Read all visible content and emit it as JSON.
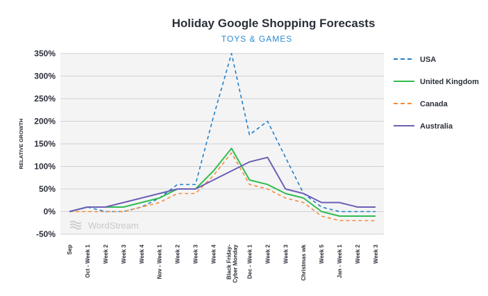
{
  "chart_data": {
    "type": "line",
    "title": "Holiday Google Shopping Forecasts",
    "subtitle": "TOYS & GAMES",
    "xlabel": "",
    "ylabel": "RELATIVE GROWTH",
    "ylim": [
      -50,
      350
    ],
    "yticks": [
      -50,
      0,
      50,
      100,
      150,
      200,
      250,
      300,
      350
    ],
    "ytick_labels": [
      "-50%",
      "0%",
      "50%",
      "100%",
      "150%",
      "200%",
      "250%",
      "300%",
      "350%"
    ],
    "grid": true,
    "legend_position": "right",
    "watermark": "WordStream",
    "categories": [
      "Sep",
      "Oct - Week 1",
      "Week 2",
      "Week 3",
      "Week 4",
      "Nov - Week 1",
      "Week 2",
      "Week 3",
      "Week 4",
      "Black Friday-\nCyber Monday",
      "Dec - Week 1",
      "Week 2",
      "Week 3",
      "Christmas wk",
      "Week 5",
      "Jan - Week 1",
      "Week 2",
      "Week 3"
    ],
    "series": [
      {
        "name": "USA",
        "color": "#1f7fc6",
        "style": "dashed",
        "values": [
          0,
          10,
          0,
          0,
          10,
          30,
          60,
          60,
          210,
          350,
          170,
          200,
          120,
          40,
          10,
          0,
          0,
          0
        ]
      },
      {
        "name": "United Kingdom",
        "color": "#2dbd4e",
        "style": "solid",
        "values": [
          0,
          10,
          10,
          10,
          20,
          30,
          50,
          50,
          90,
          140,
          70,
          60,
          40,
          30,
          0,
          -10,
          -10,
          -10
        ]
      },
      {
        "name": "Canada",
        "color": "#f58b3c",
        "style": "dashed",
        "values": [
          0,
          0,
          0,
          0,
          10,
          20,
          40,
          40,
          80,
          130,
          60,
          50,
          30,
          20,
          -10,
          -20,
          -20,
          -20
        ]
      },
      {
        "name": "Australia",
        "color": "#6b5fb5",
        "style": "solid",
        "values": [
          0,
          10,
          10,
          20,
          30,
          40,
          50,
          50,
          70,
          90,
          110,
          120,
          50,
          40,
          20,
          20,
          10,
          10
        ]
      }
    ]
  }
}
